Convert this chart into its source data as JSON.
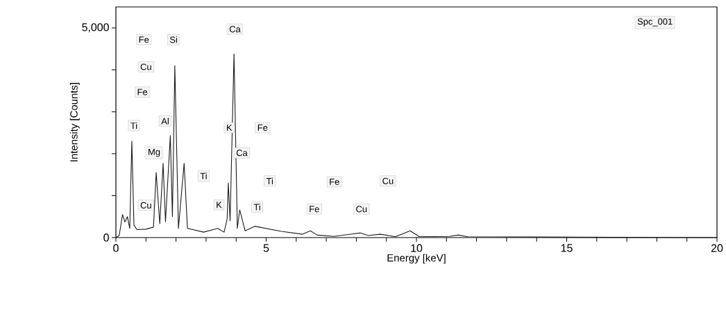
{
  "chart_data": {
    "type": "line",
    "xlabel": "Energy [keV]",
    "ylabel": "Intensity [Counts]",
    "xlim": [
      0,
      20
    ],
    "ylim": [
      0,
      5500
    ],
    "xticks": [
      0,
      5,
      10,
      15,
      20,
      {
        "value": 1,
        "label": null
      },
      {
        "value": 2,
        "label": null
      },
      {
        "value": 3,
        "label": null
      },
      {
        "value": 4,
        "label": null
      },
      {
        "value": 6,
        "label": null
      },
      {
        "value": 7,
        "label": null
      },
      {
        "value": 8,
        "label": null
      },
      {
        "value": 9,
        "label": null
      },
      {
        "value": 11,
        "label": null
      },
      {
        "value": 12,
        "label": null
      },
      {
        "value": 13,
        "label": null
      },
      {
        "value": 14,
        "label": null
      },
      {
        "value": 16,
        "label": null
      },
      {
        "value": 17,
        "label": null
      },
      {
        "value": 18,
        "label": null
      },
      {
        "value": 19,
        "label": null
      }
    ],
    "yticks": [
      0,
      {
        "value": 1000,
        "label": null
      },
      {
        "value": 2000,
        "label": null
      },
      {
        "value": 3000,
        "label": null
      },
      {
        "value": 4000,
        "label": null
      },
      {
        "value": 5000,
        "label": "5,000"
      }
    ],
    "grid": false,
    "marker": "none",
    "line_style": "solid",
    "series": [
      {
        "color": "#1a1a1a",
        "x": [
          0.0,
          0.11,
          0.22,
          0.3,
          0.38,
          0.46,
          0.53,
          0.6,
          0.7,
          1.0,
          1.25,
          1.34,
          1.46,
          1.57,
          1.65,
          1.81,
          1.88,
          1.96,
          2.08,
          2.27,
          2.38,
          2.92,
          3.39,
          3.6,
          3.7,
          3.74,
          3.8,
          3.93,
          4.04,
          4.12,
          4.3,
          4.62,
          5.5,
          6.2,
          6.47,
          6.7,
          7.25,
          8.13,
          8.4,
          8.8,
          9.3,
          9.79,
          10.1,
          11.1,
          11.4,
          11.7,
          15,
          20
        ],
        "values": [
          0,
          50,
          550,
          370,
          500,
          220,
          2300,
          300,
          190,
          200,
          250,
          1550,
          330,
          1770,
          380,
          2430,
          500,
          4100,
          220,
          1770,
          220,
          130,
          220,
          130,
          440,
          1300,
          400,
          4380,
          220,
          660,
          160,
          270,
          150,
          80,
          160,
          60,
          30,
          110,
          50,
          80,
          20,
          160,
          20,
          30,
          60,
          20,
          10,
          0
        ]
      }
    ],
    "annotations": [
      {
        "text": "Fe",
        "x": 0.93,
        "y": 4720
      },
      {
        "text": "Si",
        "x": 1.92,
        "y": 4720
      },
      {
        "text": "Ca",
        "x": 3.96,
        "y": 4970
      },
      {
        "text": "Cu",
        "x": 1.0,
        "y": 4070
      },
      {
        "text": "Fe",
        "x": 0.88,
        "y": 3470
      },
      {
        "text": "Ti",
        "x": 0.6,
        "y": 2670
      },
      {
        "text": "Al",
        "x": 1.64,
        "y": 2780
      },
      {
        "text": "Mg",
        "x": 1.27,
        "y": 2020
      },
      {
        "text": "K",
        "x": 3.77,
        "y": 2620
      },
      {
        "text": "Fe",
        "x": 4.88,
        "y": 2620
      },
      {
        "text": "Ca",
        "x": 4.19,
        "y": 2020
      },
      {
        "text": "Ti",
        "x": 2.92,
        "y": 1470
      },
      {
        "text": "Ti",
        "x": 5.12,
        "y": 1350
      },
      {
        "text": "Fe",
        "x": 7.27,
        "y": 1330
      },
      {
        "text": "Cu",
        "x": 9.05,
        "y": 1350
      },
      {
        "text": "Cu",
        "x": 1.0,
        "y": 770
      },
      {
        "text": "K",
        "x": 3.43,
        "y": 780
      },
      {
        "text": "Ti",
        "x": 4.7,
        "y": 730
      },
      {
        "text": "Fe",
        "x": 6.6,
        "y": 680
      },
      {
        "text": "Cu",
        "x": 8.17,
        "y": 680
      },
      "Spc_001"
    ]
  }
}
